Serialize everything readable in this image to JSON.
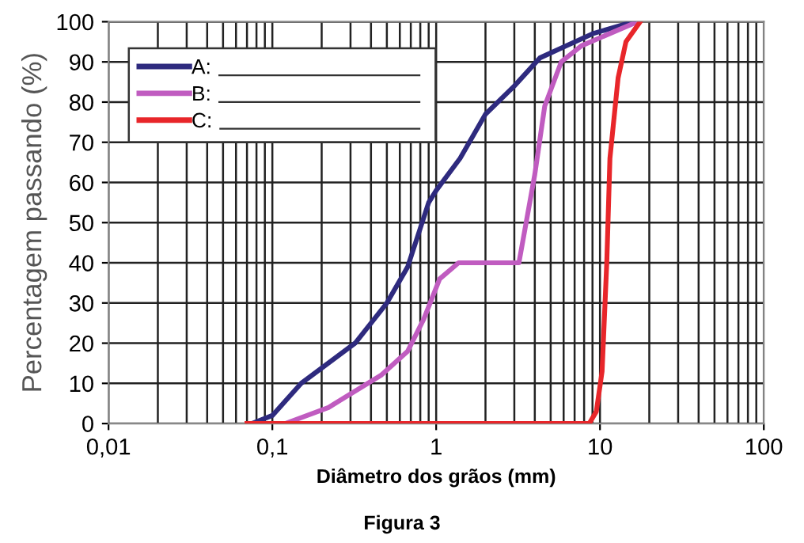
{
  "chart_data": {
    "type": "line",
    "xlabel": "Diâmetro dos grãos (mm)",
    "ylabel": "Percentagem passando (%)",
    "annotations": [
      "Figura 3"
    ],
    "log": "x",
    "xlim": [
      0.01,
      100
    ],
    "ylim": [
      0,
      100
    ],
    "xticks": [
      {
        "value": 0.01,
        "label": "0,01"
      },
      {
        "value": 0.1,
        "label": "0,1"
      },
      1,
      10,
      100
    ],
    "yticks": [
      0,
      10,
      20,
      30,
      40,
      50,
      60,
      70,
      80,
      90,
      100
    ],
    "grid": true,
    "legend": "top left",
    "marker": "none",
    "line_style": "solid",
    "series": [
      {
        "name": "A:",
        "color": "#2e2a7e",
        "x": [
          0.075,
          0.1,
          0.15,
          0.32,
          0.5,
          0.67,
          0.9,
          1,
          1.4,
          2,
          3,
          4.3,
          6.2,
          9,
          16
        ],
        "values": [
          0,
          2,
          10,
          20,
          30,
          39,
          55,
          58,
          66,
          77,
          84,
          91,
          94,
          97,
          100
        ]
      },
      {
        "name": "B:",
        "color": "#c05cc0",
        "x": [
          0.12,
          0.22,
          0.46,
          0.67,
          0.84,
          1.05,
          1.37,
          3.2,
          4,
          4.6,
          5.8,
          7.7,
          13,
          17
        ],
        "values": [
          0,
          4,
          12,
          18,
          26,
          36,
          40,
          40,
          62,
          79,
          90,
          94,
          98,
          100
        ]
      },
      {
        "name": "C:",
        "color": "#e8262a",
        "x": [
          0.07,
          8.6,
          9.5,
          10.3,
          11,
          11.5,
          12.9,
          14.4,
          17.6
        ],
        "values": [
          0,
          0,
          3,
          13,
          40,
          66,
          86,
          95,
          100
        ]
      }
    ]
  }
}
